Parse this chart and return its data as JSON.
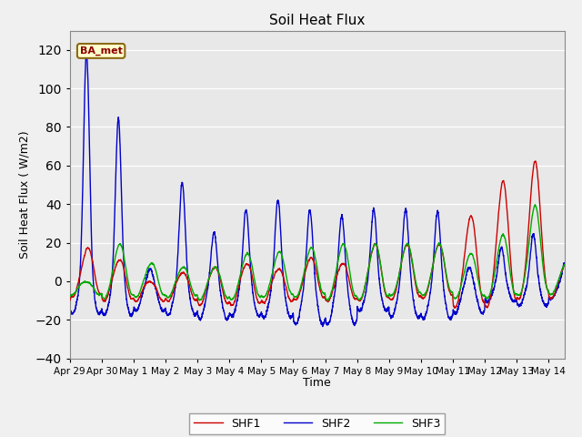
{
  "title": "Soil Heat Flux",
  "xlabel": "Time",
  "ylabel": "Soil Heat Flux ( W/m2)",
  "ylim": [
    -40,
    130
  ],
  "yticks": [
    -40,
    -20,
    0,
    20,
    40,
    60,
    80,
    100,
    120
  ],
  "xlim_days": [
    0,
    15.5
  ],
  "xtick_labels": [
    "Apr 29",
    "Apr 30",
    "May 1",
    "May 2",
    "May 3",
    "May 4",
    "May 5",
    "May 6",
    "May 7",
    "May 8",
    "May 9",
    "May 10",
    "May 11",
    "May 12",
    "May 13",
    "May 14"
  ],
  "xtick_positions": [
    0,
    1,
    2,
    3,
    4,
    5,
    6,
    7,
    8,
    9,
    10,
    11,
    12,
    13,
    14,
    15
  ],
  "annotation_text": "BA_met",
  "shf1_color": "#cc0000",
  "shf2_color": "#0000cc",
  "shf3_color": "#00aa00",
  "legend_labels": [
    "SHF1",
    "SHF2",
    "SHF3"
  ],
  "bg_color": "#e8e8e8",
  "grid_color": "#ffffff",
  "linewidth": 1.0,
  "fig_bg": "#f0f0f0"
}
